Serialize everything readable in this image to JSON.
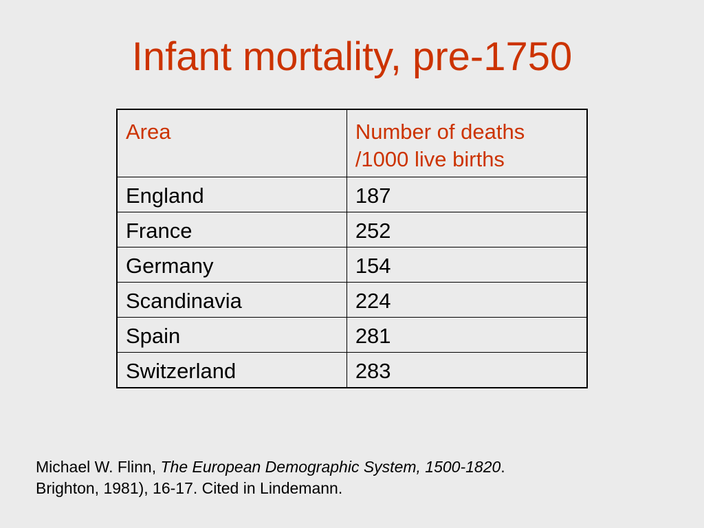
{
  "slide": {
    "title": "Infant mortality, pre-1750"
  },
  "table": {
    "headers": {
      "area": "Area",
      "value_line1": "Number of deaths",
      "value_line2": "/1000 live births"
    },
    "rows": [
      {
        "area": "England",
        "value": "187"
      },
      {
        "area": "France",
        "value": "252"
      },
      {
        "area": "Germany",
        "value": "154"
      },
      {
        "area": "Scandinavia",
        "value": "224"
      },
      {
        "area": "Spain",
        "value": "281"
      },
      {
        "area": "Switzerland",
        "value": "283"
      }
    ]
  },
  "citation": {
    "author": "Michael W. Flinn, ",
    "book_title": "The European Demographic System, 1500-1820",
    "after_title": ".",
    "line2": "Brighton, 1981), 16-17.  Cited in Lindemann."
  },
  "colors": {
    "accent": "#cc3300",
    "background": "#ebebeb",
    "text": "#000000"
  }
}
